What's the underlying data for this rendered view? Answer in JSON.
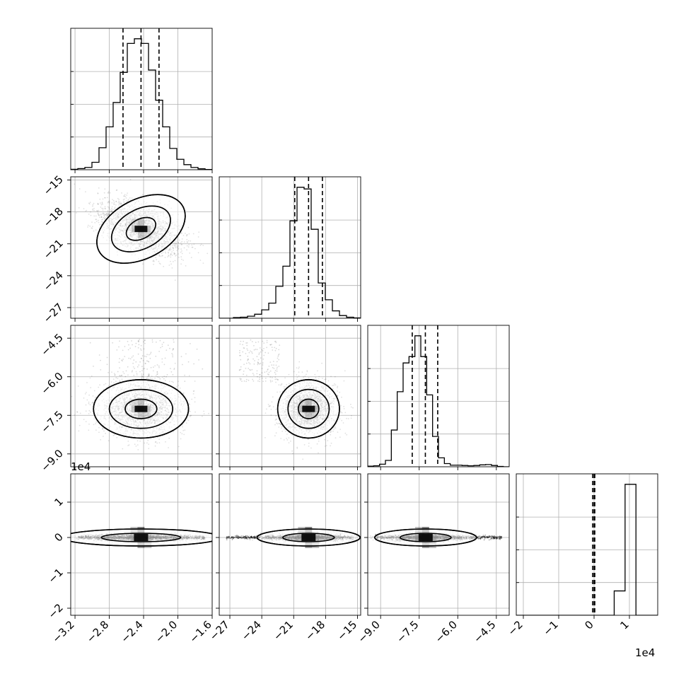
{
  "chart_data": {
    "type": "corner",
    "grid": true,
    "parameters": [
      {
        "range": [
          -3.25,
          -1.6
        ],
        "ticks": [
          "−3.2",
          "−2.8",
          "−2.4",
          "−2.0",
          "−1.6"
        ],
        "tick_values": [
          -3.2,
          -2.8,
          -2.4,
          -2.0,
          -1.6
        ],
        "center": -2.43,
        "spread": 0.21,
        "quantiles": [
          -2.64,
          -2.43,
          -2.22
        ],
        "hist_bins": 20,
        "hist_counts": [
          2,
          5,
          10,
          32,
          95,
          185,
          290,
          420,
          545,
          565,
          545,
          430,
          300,
          185,
          92,
          45,
          22,
          10,
          4,
          1
        ]
      },
      {
        "range": [
          -28.0,
          -14.7
        ],
        "ticks": [
          "−27",
          "−24",
          "−21",
          "−18",
          "−15"
        ],
        "tick_values": [
          -27,
          -24,
          -21,
          -18,
          -15
        ],
        "center": -19.6,
        "spread": 1.1,
        "quantiles": [
          -20.9,
          -19.6,
          -18.3
        ],
        "hist_bins": 20,
        "hist_counts": [
          0,
          0,
          2,
          3,
          6,
          12,
          25,
          45,
          95,
          155,
          290,
          390,
          385,
          265,
          105,
          55,
          22,
          8,
          3,
          1
        ]
      },
      {
        "range": [
          -9.5,
          -4.0
        ],
        "ticks": [
          "−9.0",
          "−7.5",
          "−6.0",
          "−4.5"
        ],
        "tick_values": [
          -9.0,
          -7.5,
          -6.0,
          -4.5
        ],
        "center": -7.25,
        "spread": 0.45,
        "quantiles": [
          -7.77,
          -7.26,
          -6.78
        ],
        "hist_bins": 24,
        "hist_counts": [
          2,
          3,
          8,
          20,
          115,
          235,
          325,
          345,
          410,
          345,
          225,
          95,
          28,
          10,
          5,
          5,
          4,
          3,
          4,
          6,
          7,
          4,
          1,
          0
        ]
      },
      {
        "range": [
          -2.2,
          1.8
        ],
        "ticks": [
          "−2",
          "−1",
          "0",
          "1"
        ],
        "tick_values": [
          -2,
          -1,
          0,
          1
        ],
        "multiplier": "1e4",
        "center": 0,
        "spread": 0.02,
        "quantiles": [
          -0.04,
          0.0,
          0.02
        ],
        "hist_bins": 13,
        "hist_counts": [
          0,
          0,
          0,
          0,
          0,
          0,
          0,
          0,
          0,
          240,
          1290,
          0,
          0
        ]
      }
    ],
    "scatter_visible": true,
    "contours_visible": true
  }
}
